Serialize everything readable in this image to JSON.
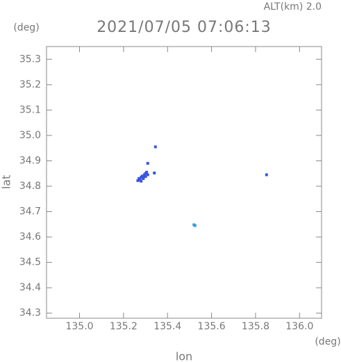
{
  "chart_data": {
    "type": "scatter",
    "title": "2021/07/05 07:06:13",
    "subtitle": "ALT(km) 2.0",
    "y_unit": "(deg)",
    "x_unit": "(deg)",
    "xlabel": "lon",
    "ylabel": "lat",
    "x": [
      135.27,
      135.275,
      135.28,
      135.285,
      135.29,
      135.295,
      135.3,
      135.265,
      135.28,
      135.29,
      135.305,
      135.31,
      135.3,
      135.34,
      135.31,
      135.345,
      135.52,
      135.525,
      135.85
    ],
    "y": [
      34.83,
      34.825,
      34.835,
      34.84,
      34.838,
      34.845,
      34.85,
      34.822,
      34.82,
      34.83,
      34.855,
      34.845,
      34.838,
      34.852,
      34.89,
      34.955,
      34.648,
      34.645,
      34.845
    ],
    "colors": [
      "#3a55e0",
      "#3a55e0",
      "#3a55e0",
      "#3a55e0",
      "#3a55e0",
      "#3a55e0",
      "#3a55e0",
      "#3a55e0",
      "#3a55e0",
      "#3a55e0",
      "#3a55e0",
      "#3a55e0",
      "#3a55e0",
      "#3a55e0",
      "#3a55e0",
      "#3a55e0",
      "#3a9be0",
      "#3a9be0",
      "#3a55e0"
    ],
    "xlim": [
      134.85,
      136.1
    ],
    "ylim": [
      34.28,
      35.35
    ],
    "xticks": [
      {
        "value": 135,
        "label": "135.0"
      },
      135.2,
      135.4,
      135.6,
      135.8,
      {
        "value": 136,
        "label": "136.0"
      }
    ],
    "yticks": [
      34.3,
      34.4,
      34.5,
      34.6,
      34.7,
      34.8,
      34.9,
      {
        "value": 35,
        "label": "35.0"
      },
      35.1,
      35.2,
      35.3
    ]
  }
}
